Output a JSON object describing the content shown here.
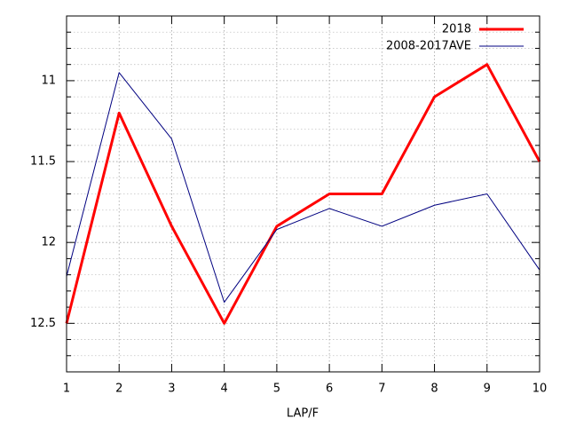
{
  "chart_data": {
    "type": "line",
    "x_label": "LAP/F",
    "x": [
      1,
      2,
      3,
      4,
      5,
      6,
      7,
      8,
      9,
      10
    ],
    "series": [
      {
        "name": "2018",
        "color": "#ff0000",
        "width": 3,
        "values": [
          12.5,
          11.2,
          11.9,
          12.5,
          11.9,
          11.7,
          11.7,
          11.1,
          10.9,
          11.5
        ]
      },
      {
        "name": "2008-2017AVE",
        "color": "#000080",
        "width": 1,
        "values": [
          12.21,
          10.95,
          11.36,
          12.37,
          11.92,
          11.79,
          11.9,
          11.77,
          11.7,
          12.17
        ]
      }
    ],
    "xlim": [
      1,
      10
    ],
    "xticks": [
      1,
      2,
      3,
      4,
      5,
      6,
      7,
      8,
      9,
      10
    ],
    "ylim": [
      12.8,
      10.6
    ],
    "yticks": [
      11,
      11.5,
      12,
      12.5
    ],
    "yminorticks": [
      10.7,
      10.8,
      10.9,
      11.1,
      11.2,
      11.3,
      11.4,
      11.6,
      11.7,
      11.8,
      11.9,
      12.1,
      12.2,
      12.3,
      12.4,
      12.6,
      12.7
    ],
    "grid": true,
    "legend": "top-right"
  }
}
